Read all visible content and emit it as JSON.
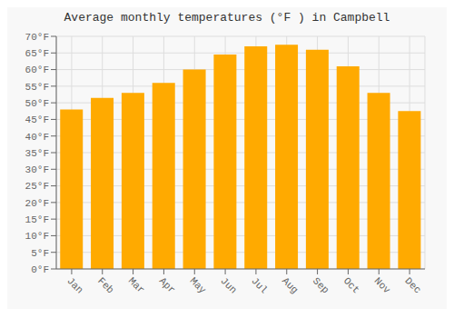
{
  "chart_data": {
    "type": "bar",
    "title": "Average monthly temperatures (°F ) in Campbell",
    "categories": [
      "Jan",
      "Feb",
      "Mar",
      "Apr",
      "May",
      "Jun",
      "Jul",
      "Aug",
      "Sep",
      "Oct",
      "Nov",
      "Dec"
    ],
    "values": [
      48,
      51.5,
      53,
      56,
      60,
      64.5,
      67,
      67.5,
      66,
      61,
      53,
      47.5
    ],
    "color": "#FFAA00",
    "ylim": [
      0,
      70
    ],
    "yticks": [
      {
        "value": 0,
        "label": "0°F"
      },
      {
        "value": 5,
        "label": "5°F"
      },
      {
        "value": 10,
        "label": "10°F"
      },
      {
        "value": 15,
        "label": "15°F"
      },
      {
        "value": 20,
        "label": "20°F"
      },
      {
        "value": 25,
        "label": "25°F"
      },
      {
        "value": 30,
        "label": "30°F"
      },
      {
        "value": 35,
        "label": "35°F"
      },
      {
        "value": 40,
        "label": "40°F"
      },
      {
        "value": 45,
        "label": "45°F"
      },
      {
        "value": 50,
        "label": "50°F"
      },
      {
        "value": 55,
        "label": "55°F"
      },
      {
        "value": 60,
        "label": "60°F"
      },
      {
        "value": 65,
        "label": "65°F"
      },
      {
        "value": 70,
        "label": "70°F"
      }
    ],
    "grid": true
  }
}
